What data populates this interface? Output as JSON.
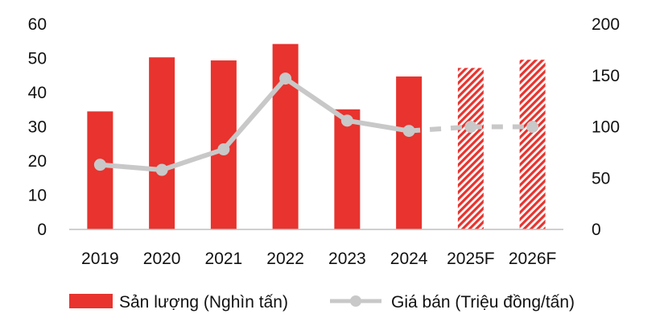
{
  "chart_data": {
    "type": "bar",
    "categories": [
      "2019",
      "2020",
      "2021",
      "2022",
      "2023",
      "2024",
      "2025F",
      "2026F"
    ],
    "forecast_categories": [
      "2025F",
      "2026F"
    ],
    "series": [
      {
        "name": "Sản lượng (Nghìn tấn)",
        "type": "bar",
        "axis": "left",
        "color": "#e8332e",
        "values": [
          34.5,
          50.3,
          49.4,
          54.2,
          35.1,
          44.7,
          47.2,
          49.6
        ]
      },
      {
        "name": "Giá bán (Triệu đồng/tấn)",
        "type": "line",
        "axis": "right",
        "color": "#c8c8c8",
        "values": [
          63,
          58,
          78,
          147,
          106,
          96,
          100,
          100
        ]
      }
    ],
    "y_left": {
      "min": 0,
      "max": 60,
      "ticks": [
        "0",
        "10",
        "20",
        "30",
        "40",
        "50",
        "60"
      ]
    },
    "y_right": {
      "min": 0,
      "max": 200,
      "ticks": [
        "0",
        "50",
        "100",
        "150",
        "200"
      ]
    },
    "legend_position": "bottom",
    "grid": false
  }
}
